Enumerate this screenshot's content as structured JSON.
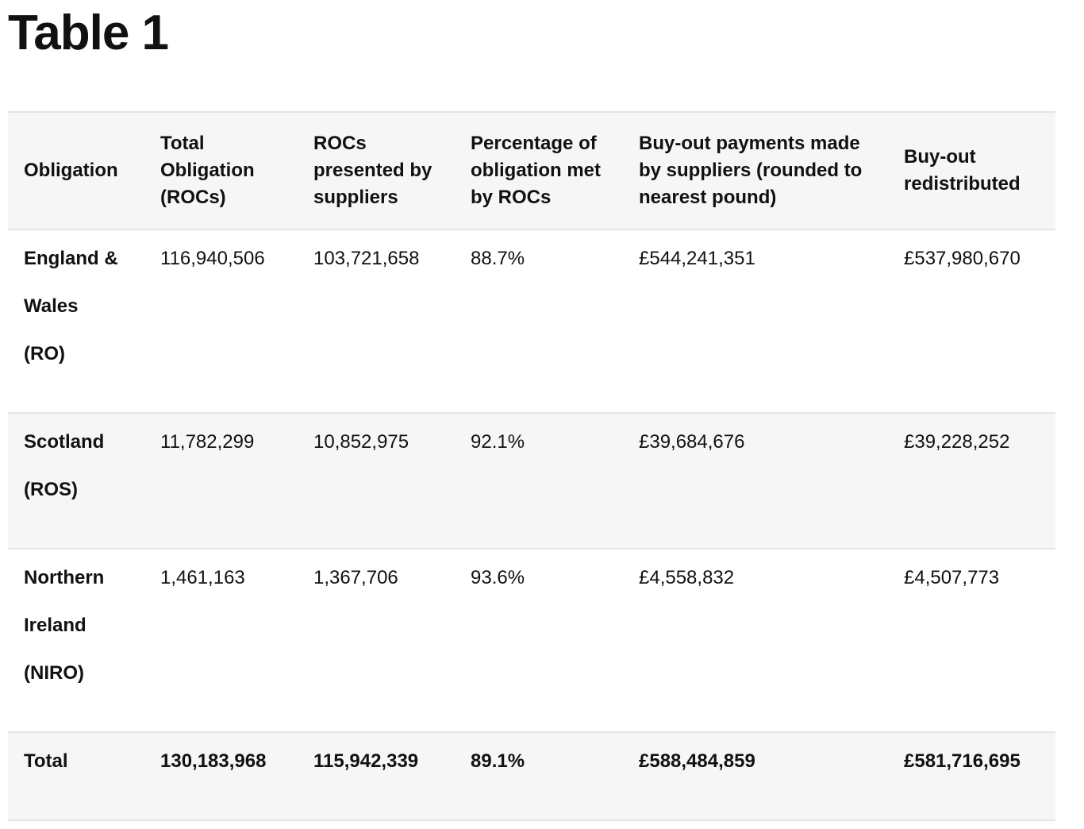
{
  "title": "Table 1",
  "table": {
    "header": [
      "Obligation",
      "Total Obligation (ROCs)",
      "ROCs presented by suppliers",
      "Percentage of obligation met by ROCs",
      "Buy-out payments made by suppliers (rounded to nearest pound)",
      "Buy-out redistributed"
    ],
    "rows": [
      [
        "England & Wales (RO)",
        "116,940,506",
        "103,721,658",
        "88.7%",
        "£544,241,351",
        "£537,980,670"
      ],
      [
        "Scotland (ROS)",
        "11,782,299",
        "10,852,975",
        "92.1%",
        "£39,684,676",
        "£39,228,252"
      ],
      [
        "Northern Ireland (NIRO)",
        "1,461,163",
        "1,367,706",
        "93.6%",
        "£4,558,832",
        "£4,507,773"
      ],
      [
        "Total",
        "130,183,968",
        "115,942,339",
        "89.1%",
        "£588,484,859",
        "£581,716,695"
      ]
    ]
  }
}
